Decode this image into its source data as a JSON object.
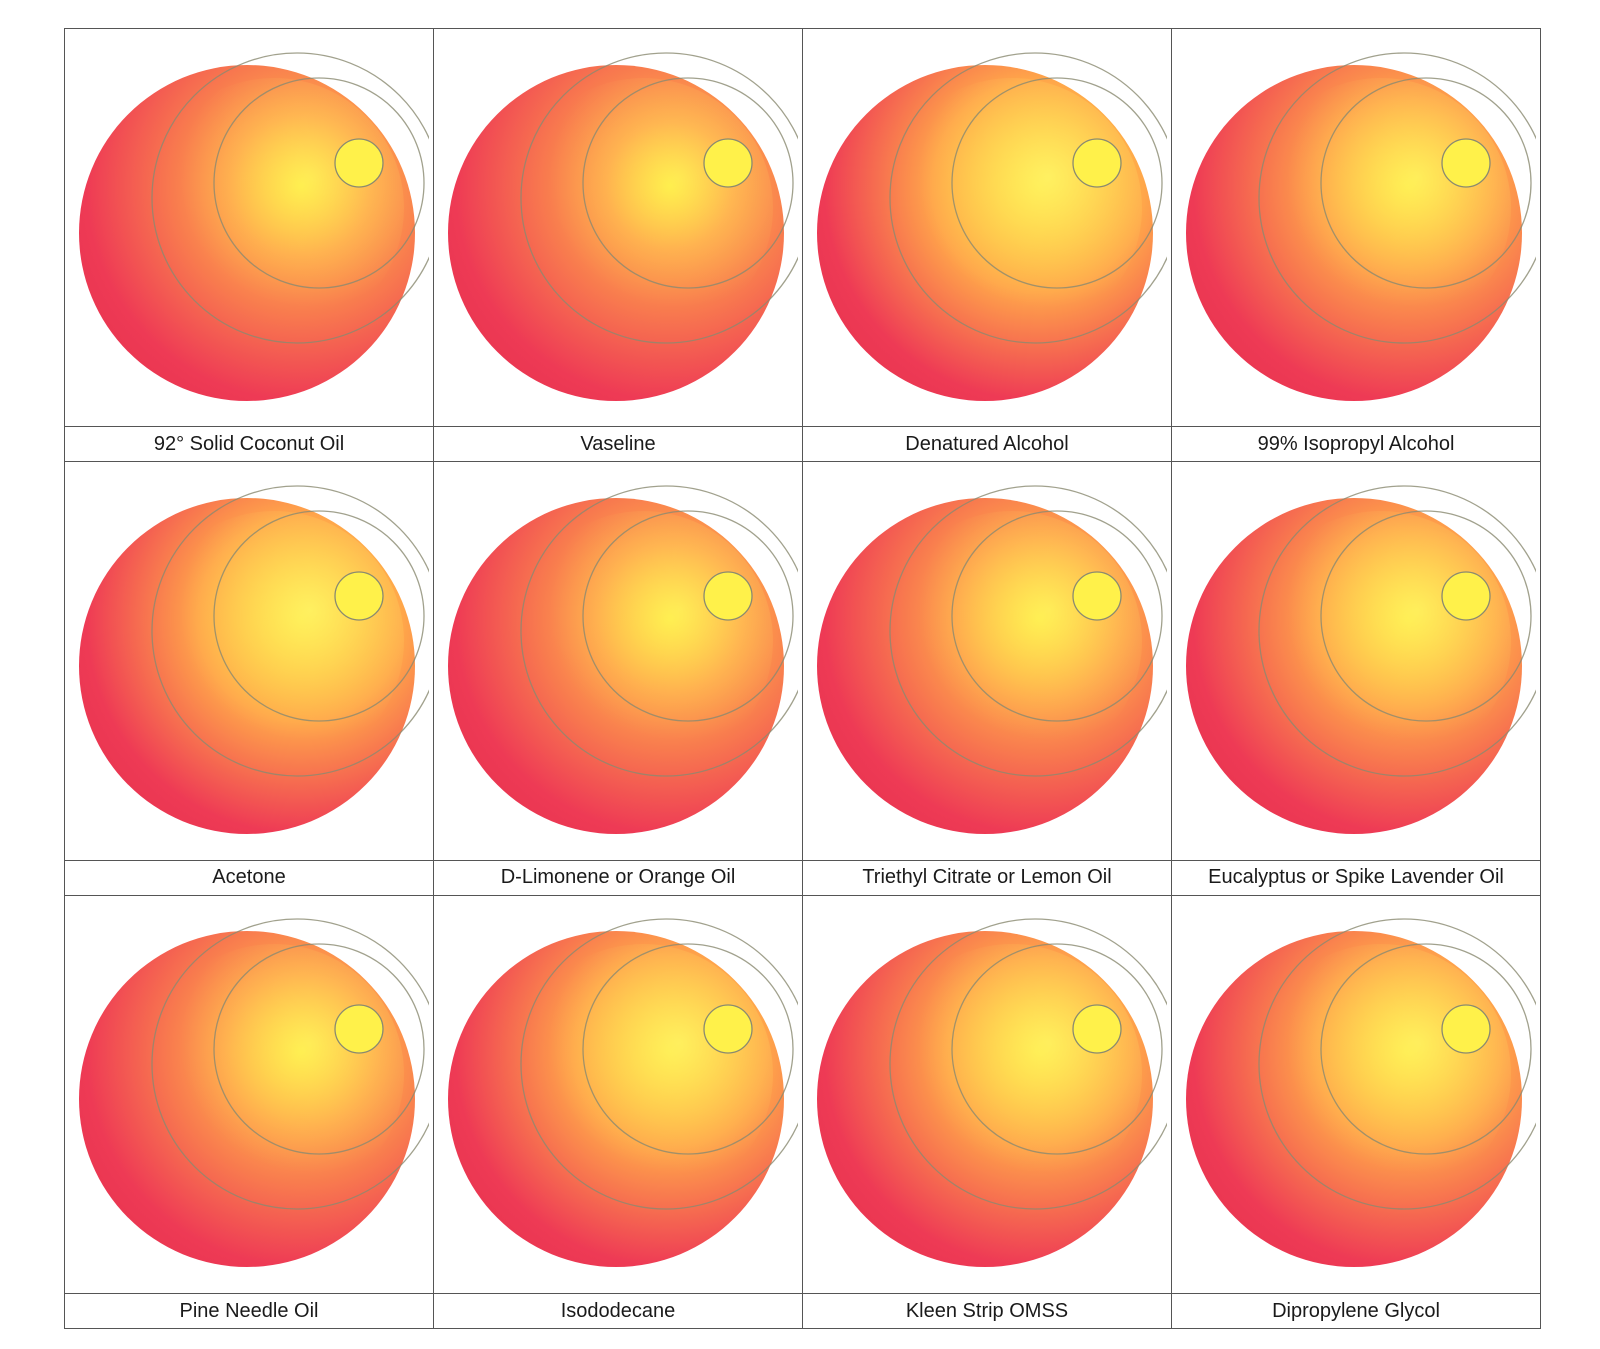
{
  "colors": {
    "highlight": "#ffee3a",
    "mid": "#ffa64a",
    "edge": "#ee3a55",
    "circle_line": "#8a8a70",
    "border": "#555555"
  },
  "swatches": [
    {
      "label": "92° Solid Coconut Oil",
      "highlight_strength": 0.35
    },
    {
      "label": "Vaseline",
      "highlight_strength": 0.25
    },
    {
      "label": "Denatured Alcohol",
      "highlight_strength": 0.9
    },
    {
      "label": "99% Isopropyl Alcohol",
      "highlight_strength": 0.6
    },
    {
      "label": "Acetone",
      "highlight_strength": 0.85
    },
    {
      "label": "D-Limonene or Orange Oil",
      "highlight_strength": 0.4
    },
    {
      "label": "Triethyl Citrate or Lemon Oil",
      "highlight_strength": 0.5
    },
    {
      "label": "Eucalyptus or Spike Lavender Oil",
      "highlight_strength": 0.65
    },
    {
      "label": "Pine Needle Oil",
      "highlight_strength": 0.45
    },
    {
      "label": "Isododecane",
      "highlight_strength": 0.75
    },
    {
      "label": "Kleen Strip OMSS",
      "highlight_strength": 0.7
    },
    {
      "label": "Dipropylene Glycol",
      "highlight_strength": 0.7
    }
  ]
}
